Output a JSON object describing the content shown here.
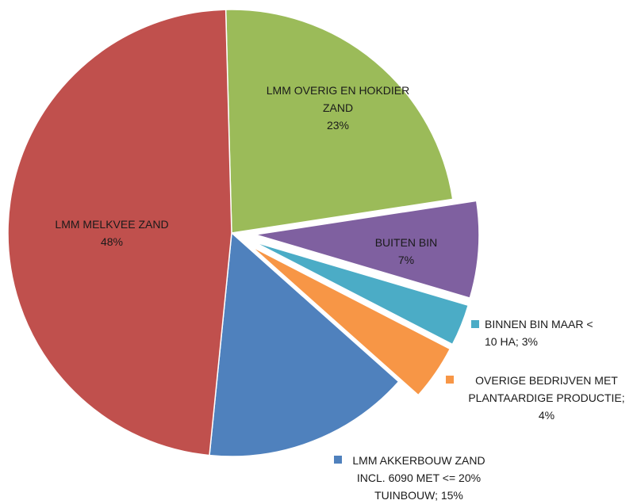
{
  "chart_data": {
    "type": "pie",
    "title": "",
    "slices": [
      {
        "label_lines": [
          "LMM OVERIG EN HOKDIER",
          "ZAND"
        ],
        "value_text": "23%",
        "value": 23,
        "color": "#9bbb59",
        "exploded": false,
        "label_position": "inside"
      },
      {
        "label_lines": [
          "BUITEN BIN"
        ],
        "value_text": "7%",
        "value": 7,
        "color": "#7f60a0",
        "exploded": true,
        "label_position": "inside"
      },
      {
        "label_lines": [
          "BINNEN BIN MAAR <",
          "10 HA; 3%"
        ],
        "value_text": "",
        "value": 3,
        "color": "#4bacc6",
        "exploded": true,
        "label_position": "outside"
      },
      {
        "label_lines": [
          "OVERIGE BEDRIJVEN MET",
          "PLANTAARDIGE PRODUCTIE;",
          "4%"
        ],
        "value_text": "",
        "value": 4,
        "color": "#f79646",
        "exploded": true,
        "label_position": "outside"
      },
      {
        "label_lines": [
          "LMM AKKERBOUW ZAND",
          "INCL. 6090 MET <= 20%",
          "TUINBOUW; 15%"
        ],
        "value_text": "",
        "value": 15,
        "color": "#4f81bd",
        "exploded": false,
        "label_position": "outside"
      },
      {
        "label_lines": [
          "LMM MELKVEE ZAND"
        ],
        "value_text": "48%",
        "value": 48,
        "color": "#c0504d",
        "exploded": false,
        "label_position": "inside"
      }
    ]
  }
}
